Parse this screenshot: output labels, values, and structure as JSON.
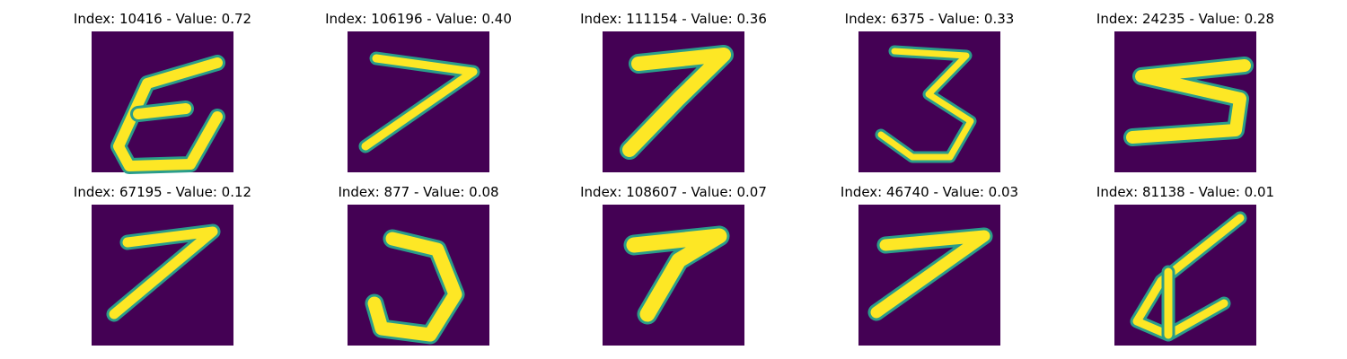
{
  "panels": [
    {
      "title": "Index: 10416 - Value: 0.72"
    },
    {
      "title": "Index: 106196 - Value: 0.40"
    },
    {
      "title": "Index: 111154 - Value: 0.36"
    },
    {
      "title": "Index: 6375 - Value: 0.33"
    },
    {
      "title": "Index: 24235 - Value: 0.28"
    },
    {
      "title": "Index: 67195 - Value: 0.12"
    },
    {
      "title": "Index: 877 - Value: 0.08"
    },
    {
      "title": "Index: 108607 - Value: 0.07"
    },
    {
      "title": "Index: 46740 - Value: 0.03"
    },
    {
      "title": "Index: 81138 - Value: 0.01"
    }
  ]
}
